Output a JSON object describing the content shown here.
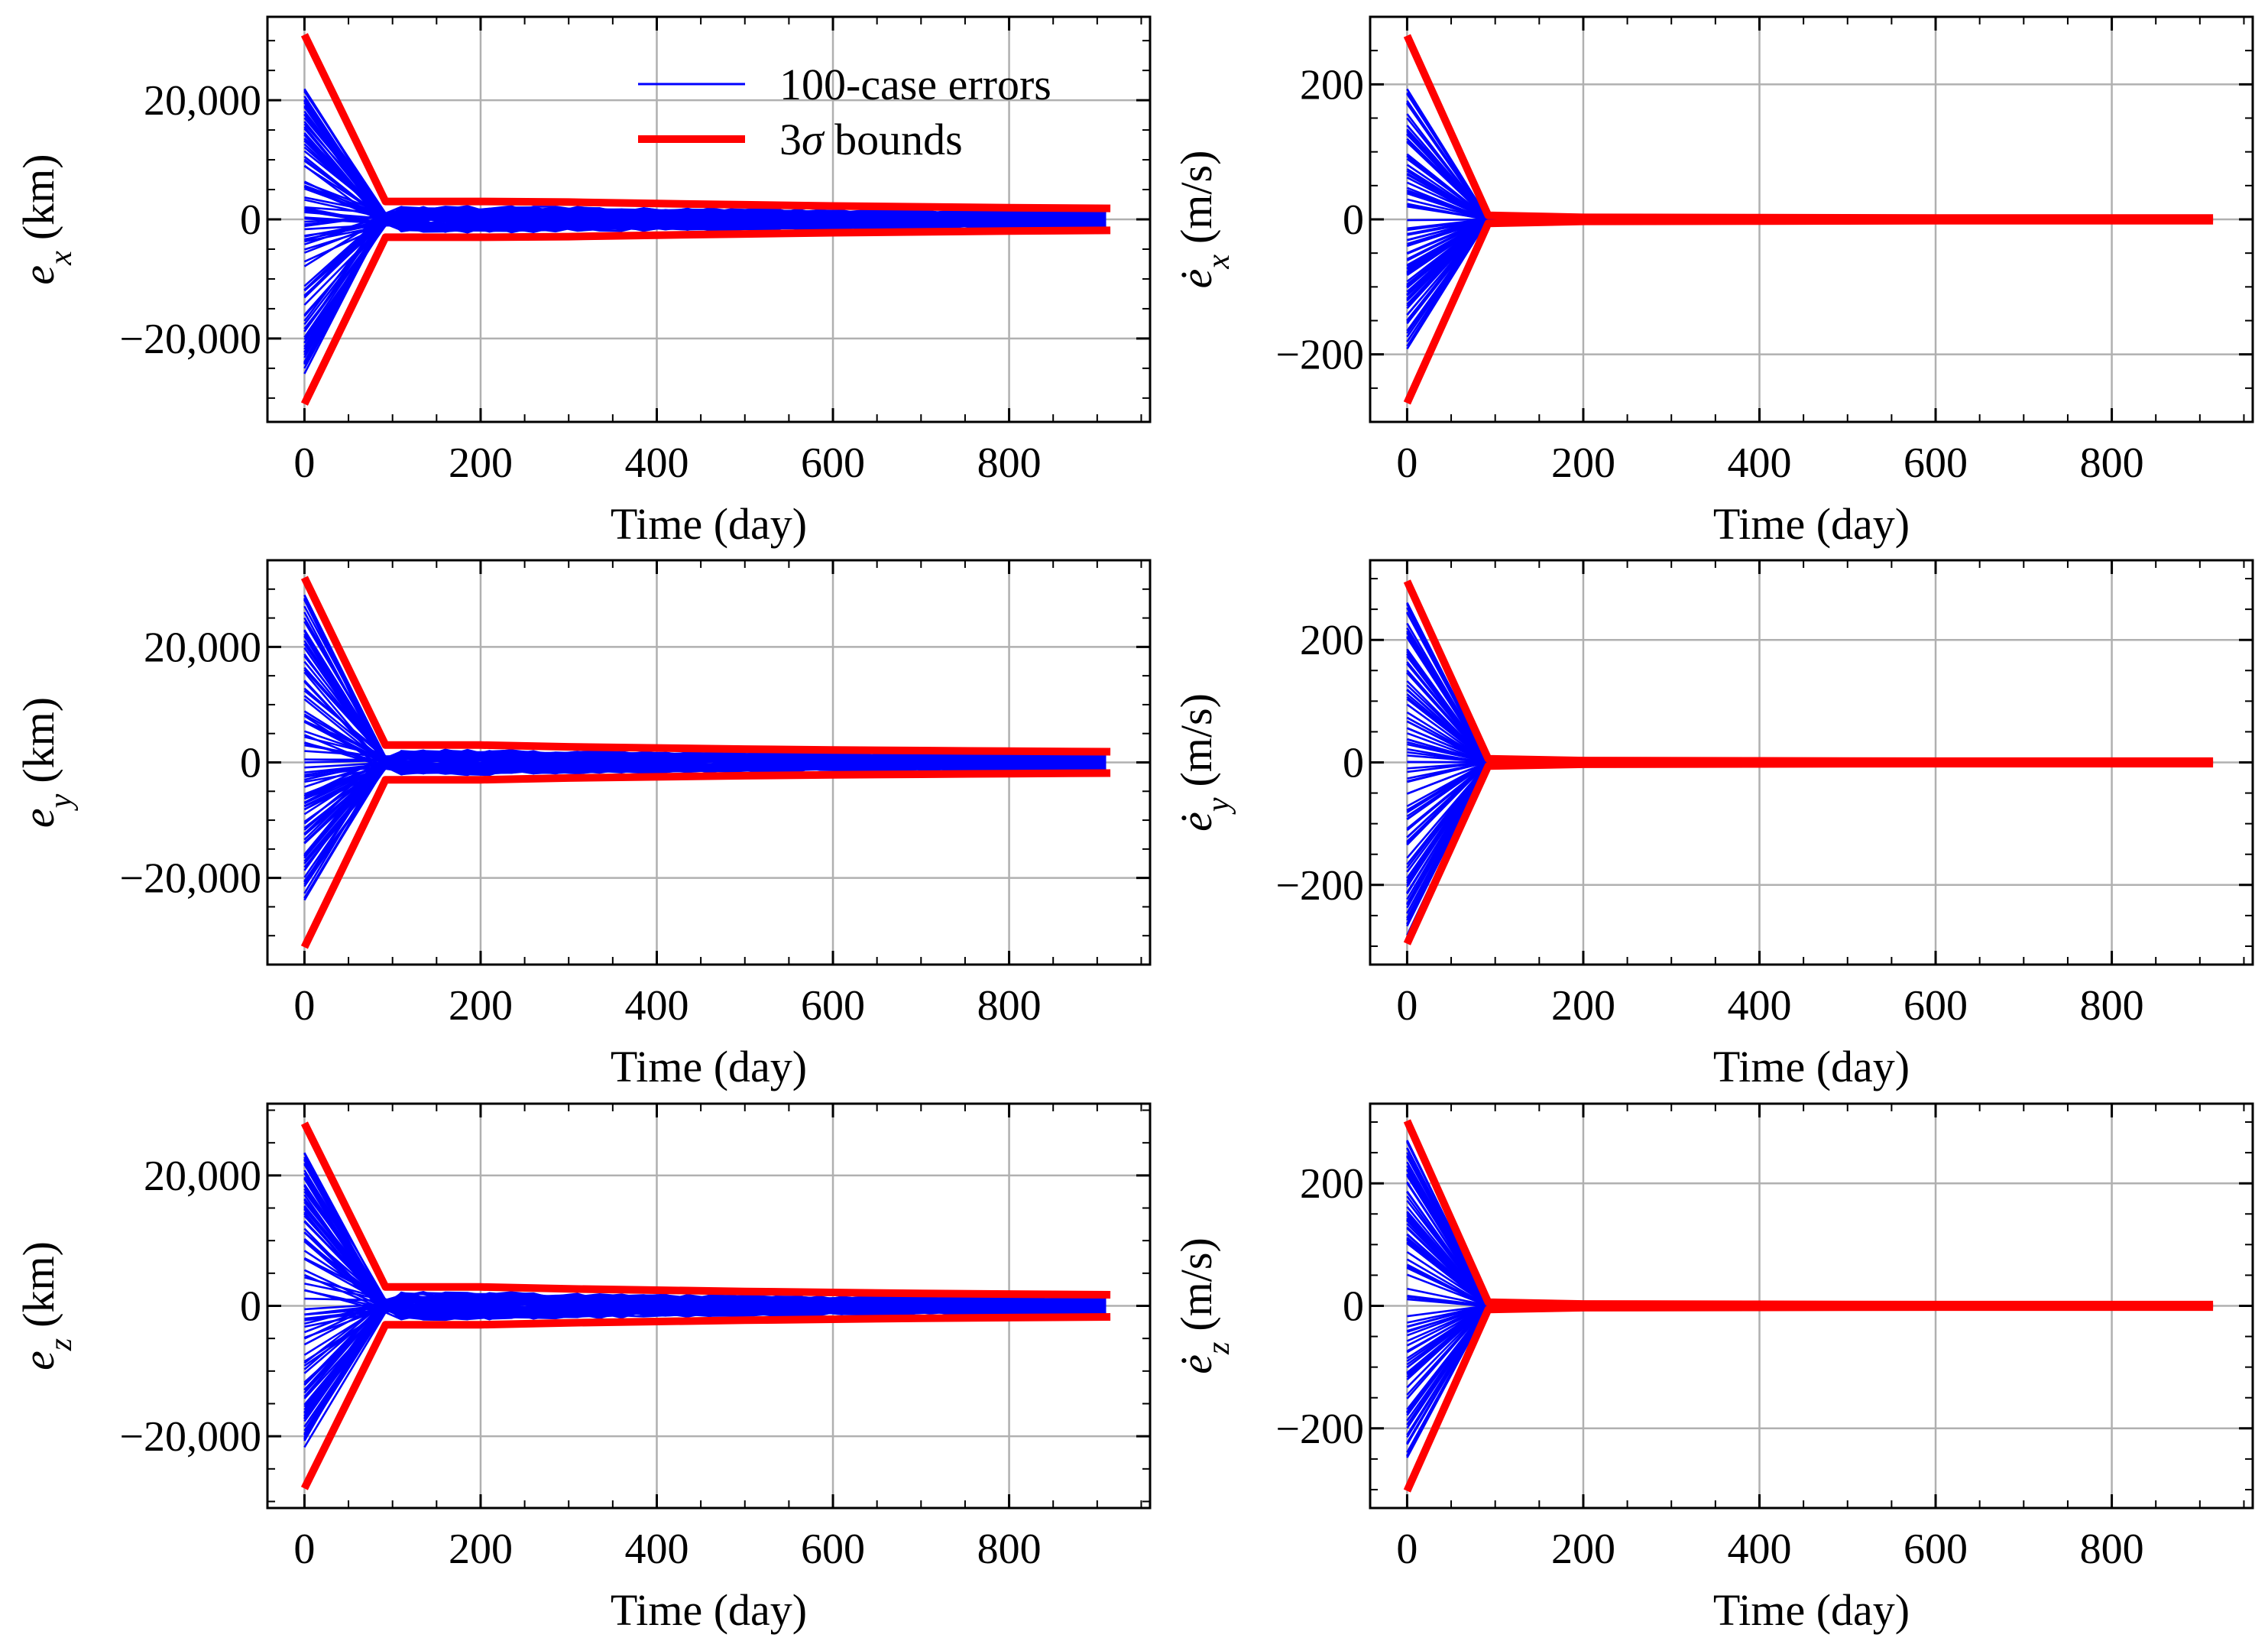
{
  "chart_data": [
    {
      "type": "line",
      "id": "ex",
      "ylabel_base": "e",
      "ylabel_sub": "x",
      "ylabel_dot": false,
      "ylabel_unit": "(km)",
      "xlabel": "Time (day)",
      "xlim": [
        -42,
        960
      ],
      "ylim": [
        -34000,
        34000
      ],
      "xticks": [
        0,
        200,
        400,
        600,
        800
      ],
      "xtick_labels": [
        "0",
        "200",
        "400",
        "600",
        "800"
      ],
      "yticks": [
        -20000,
        0,
        20000
      ],
      "ytick_labels": [
        "−20,000",
        "0",
        "20,000"
      ],
      "bound_x": [
        0,
        92,
        200,
        300,
        400,
        500,
        600,
        700,
        800,
        915
      ],
      "bound_upper": [
        31000,
        3000,
        3000,
        2900,
        2650,
        2450,
        2250,
        2100,
        1950,
        1850
      ],
      "bound_lower": [
        -31000,
        -3000,
        -3000,
        -2900,
        -2650,
        -2450,
        -2250,
        -2100,
        -1950,
        -1850
      ],
      "series": [
        {
          "name": "100-case errors",
          "initial_range": [
            -26000,
            22000
          ],
          "steady_amplitude": 2000,
          "n_cases": 100
        },
        {
          "name": "3σ bounds",
          "uses": "bounds"
        }
      ],
      "legend": [
        {
          "label": "100-case errors",
          "color": "#0000ff"
        },
        {
          "label": "3σ bounds",
          "color": "#ff0000"
        }
      ]
    },
    {
      "type": "line",
      "id": "vx",
      "ylabel_base": "e",
      "ylabel_sub": "x",
      "ylabel_dot": true,
      "ylabel_unit": "(m/s)",
      "xlabel": "Time (day)",
      "xlim": [
        -42,
        960
      ],
      "ylim": [
        -300,
        300
      ],
      "xticks": [
        0,
        200,
        400,
        600,
        800
      ],
      "xtick_labels": [
        "0",
        "200",
        "400",
        "600",
        "800"
      ],
      "yticks": [
        -200,
        0,
        200
      ],
      "ytick_labels": [
        "−200",
        "0",
        "200"
      ],
      "bound_x": [
        0,
        92,
        200,
        400,
        600,
        800,
        915
      ],
      "bound_upper": [
        272,
        6,
        3,
        2.5,
        2,
        2,
        2
      ],
      "bound_lower": [
        -272,
        -6,
        -3,
        -2.5,
        -2,
        -2,
        -2
      ],
      "series": [
        {
          "name": "100-case errors",
          "initial_range": [
            -195,
            200
          ],
          "steady_amplitude": 2,
          "n_cases": 100
        },
        {
          "name": "3σ bounds",
          "uses": "bounds"
        }
      ]
    },
    {
      "type": "line",
      "id": "ey",
      "ylabel_base": "e",
      "ylabel_sub": "y",
      "ylabel_dot": false,
      "ylabel_unit": "(km)",
      "xlabel": "Time (day)",
      "xlim": [
        -42,
        960
      ],
      "ylim": [
        -35000,
        35000
      ],
      "xticks": [
        0,
        200,
        400,
        600,
        800
      ],
      "xtick_labels": [
        "0",
        "200",
        "400",
        "600",
        "800"
      ],
      "yticks": [
        -20000,
        0,
        20000
      ],
      "ytick_labels": [
        "−20,000",
        "0",
        "20,000"
      ],
      "bound_x": [
        0,
        92,
        200,
        300,
        400,
        500,
        600,
        700,
        800,
        915
      ],
      "bound_upper": [
        32000,
        3000,
        3000,
        2700,
        2500,
        2300,
        2150,
        2050,
        1950,
        1850
      ],
      "bound_lower": [
        -32000,
        -3000,
        -3000,
        -2700,
        -2500,
        -2300,
        -2150,
        -2050,
        -1950,
        -1850
      ],
      "series": [
        {
          "name": "100-case errors",
          "initial_range": [
            -24000,
            29000
          ],
          "steady_amplitude": 2000,
          "n_cases": 100
        },
        {
          "name": "3σ bounds",
          "uses": "bounds"
        }
      ]
    },
    {
      "type": "line",
      "id": "vy",
      "ylabel_base": "e",
      "ylabel_sub": "y",
      "ylabel_dot": true,
      "ylabel_unit": "(m/s)",
      "xlabel": "Time (day)",
      "xlim": [
        -42,
        960
      ],
      "ylim": [
        -330,
        330
      ],
      "xticks": [
        0,
        200,
        400,
        600,
        800
      ],
      "xtick_labels": [
        "0",
        "200",
        "400",
        "600",
        "800"
      ],
      "yticks": [
        -200,
        0,
        200
      ],
      "ytick_labels": [
        "−200",
        "0",
        "200"
      ],
      "bound_x": [
        0,
        92,
        200,
        400,
        600,
        800,
        915
      ],
      "bound_upper": [
        296,
        6,
        3,
        2.5,
        2,
        2,
        2
      ],
      "bound_lower": [
        -296,
        -6,
        -3,
        -2.5,
        -2,
        -2,
        -2
      ],
      "series": [
        {
          "name": "100-case errors",
          "initial_range": [
            -285,
            270
          ],
          "steady_amplitude": 2,
          "n_cases": 100
        },
        {
          "name": "3σ bounds",
          "uses": "bounds"
        }
      ]
    },
    {
      "type": "line",
      "id": "ez",
      "ylabel_base": "e",
      "ylabel_sub": "z",
      "ylabel_dot": false,
      "ylabel_unit": "(km)",
      "xlabel": "Time (day)",
      "xlim": [
        -42,
        960
      ],
      "ylim": [
        -31000,
        31000
      ],
      "xticks": [
        0,
        200,
        400,
        600,
        800
      ],
      "xtick_labels": [
        "0",
        "200",
        "400",
        "600",
        "800"
      ],
      "yticks": [
        -20000,
        0,
        20000
      ],
      "ytick_labels": [
        "−20,000",
        "0",
        "20,000"
      ],
      "bound_x": [
        0,
        92,
        200,
        300,
        400,
        500,
        600,
        700,
        800,
        915
      ],
      "bound_upper": [
        28000,
        2900,
        2900,
        2600,
        2400,
        2200,
        2050,
        1900,
        1800,
        1700
      ],
      "bound_lower": [
        -28000,
        -2900,
        -2900,
        -2600,
        -2400,
        -2200,
        -2050,
        -1900,
        -1800,
        -1700
      ],
      "series": [
        {
          "name": "100-case errors",
          "initial_range": [
            -22000,
            24000
          ],
          "steady_amplitude": 1900,
          "n_cases": 100
        },
        {
          "name": "3σ bounds",
          "uses": "bounds"
        }
      ]
    },
    {
      "type": "line",
      "id": "vz",
      "ylabel_base": "e",
      "ylabel_sub": "z",
      "ylabel_dot": true,
      "ylabel_unit": "(m/s)",
      "xlabel": "Time (day)",
      "xlim": [
        -42,
        960
      ],
      "ylim": [
        -330,
        330
      ],
      "xticks": [
        0,
        200,
        400,
        600,
        800
      ],
      "xtick_labels": [
        "0",
        "200",
        "400",
        "600",
        "800"
      ],
      "yticks": [
        -200,
        0,
        200
      ],
      "ytick_labels": [
        "−200",
        "0",
        "200"
      ],
      "bound_x": [
        0,
        92,
        200,
        400,
        600,
        800,
        915
      ],
      "bound_upper": [
        302,
        6,
        3,
        2.5,
        2,
        2,
        2
      ],
      "bound_lower": [
        -302,
        -6,
        -3,
        -2.5,
        -2,
        -2,
        -2
      ],
      "series": [
        {
          "name": "100-case errors",
          "initial_range": [
            -255,
            280
          ],
          "steady_amplitude": 2,
          "n_cases": 100
        },
        {
          "name": "3σ bounds",
          "uses": "bounds"
        }
      ]
    }
  ]
}
